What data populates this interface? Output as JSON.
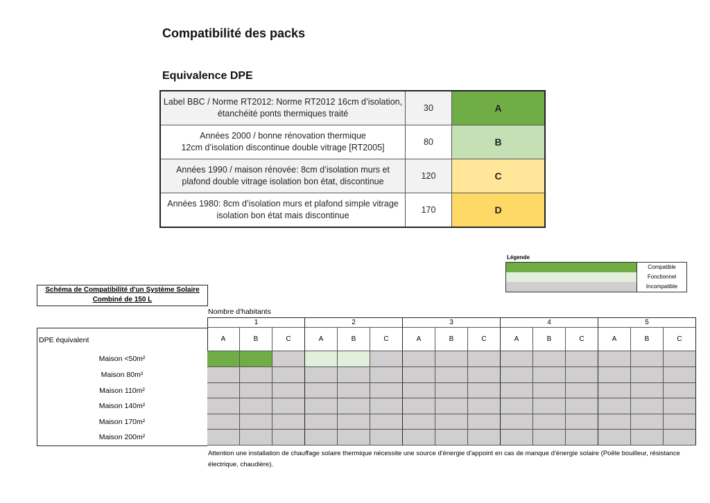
{
  "title": "Compatibilité des packs",
  "subtitle": "Equivalence DPE",
  "dpe_rows": [
    {
      "desc1": "Label BBC / Norme RT2012: Norme RT2012 16cm d’isolation,",
      "desc2": "étanchéité ponts thermiques traité",
      "value": "30",
      "label": "A",
      "bg": "#f2f2f2",
      "color": "#70ad47"
    },
    {
      "desc1": "Années 2000 / bonne rénovation thermique",
      "desc2": "12cm d’isolation discontinue double vitrage [RT2005]",
      "value": "80",
      "label": "B",
      "bg": "#ffffff",
      "color": "#c5e0b4"
    },
    {
      "desc1": "Années 1990 / maison rénovée: 8cm d’isolation murs et",
      "desc2": "plafond double vitrage isolation bon état, discontinue",
      "value": "120",
      "label": "C",
      "bg": "#f2f2f2",
      "color": "#ffe699"
    },
    {
      "desc1": "Années 1980: 8cm d’isolation murs et plafond simple vitrage",
      "desc2": "isolation bon état mais discontinue",
      "value": "170",
      "label": "D",
      "bg": "#ffffff",
      "color": "#ffd966"
    }
  ],
  "legend": {
    "title": "Légende",
    "items": [
      {
        "label": "Compatible",
        "color": "#70ad47"
      },
      {
        "label": "Fonctionnel",
        "color": "#e2efda"
      },
      {
        "label": "Incompatible",
        "color": "#d0cece"
      }
    ]
  },
  "schema_title1": "Schéma de Compatibilité d'un Système Solaire",
  "schema_title2": "Combiné de 150 L",
  "habitants_label": "Nombre d'habitants",
  "dpe_equiv_label": "DPE équivalent",
  "habitants": [
    "1",
    "2",
    "3",
    "4",
    "5"
  ],
  "dpe_classes": [
    "A",
    "B",
    "C"
  ],
  "rows": [
    {
      "label": "Maison <50m²",
      "states": [
        "C",
        "C",
        "I",
        "F",
        "F",
        "I",
        "I",
        "I",
        "I",
        "I",
        "I",
        "I",
        "I",
        "I",
        "I"
      ]
    },
    {
      "label": "Maison 80m²",
      "states": [
        "I",
        "I",
        "I",
        "I",
        "I",
        "I",
        "I",
        "I",
        "I",
        "I",
        "I",
        "I",
        "I",
        "I",
        "I"
      ]
    },
    {
      "label": "Maison 110m²",
      "states": [
        "I",
        "I",
        "I",
        "I",
        "I",
        "I",
        "I",
        "I",
        "I",
        "I",
        "I",
        "I",
        "I",
        "I",
        "I"
      ]
    },
    {
      "label": "Maison 140m²",
      "states": [
        "I",
        "I",
        "I",
        "I",
        "I",
        "I",
        "I",
        "I",
        "I",
        "I",
        "I",
        "I",
        "I",
        "I",
        "I"
      ]
    },
    {
      "label": "Maison 170m²",
      "states": [
        "I",
        "I",
        "I",
        "I",
        "I",
        "I",
        "I",
        "I",
        "I",
        "I",
        "I",
        "I",
        "I",
        "I",
        "I"
      ]
    },
    {
      "label": "Maison 200m²",
      "states": [
        "I",
        "I",
        "I",
        "I",
        "I",
        "I",
        "I",
        "I",
        "I",
        "I",
        "I",
        "I",
        "I",
        "I",
        "I"
      ]
    }
  ],
  "note": "Attention une installation de chauffage solaire thermique nécessite une source d'énergie d'appoint en cas de manque d'énergie solaire (Poêle bouilleur, résistance électrique, chaudière)."
}
